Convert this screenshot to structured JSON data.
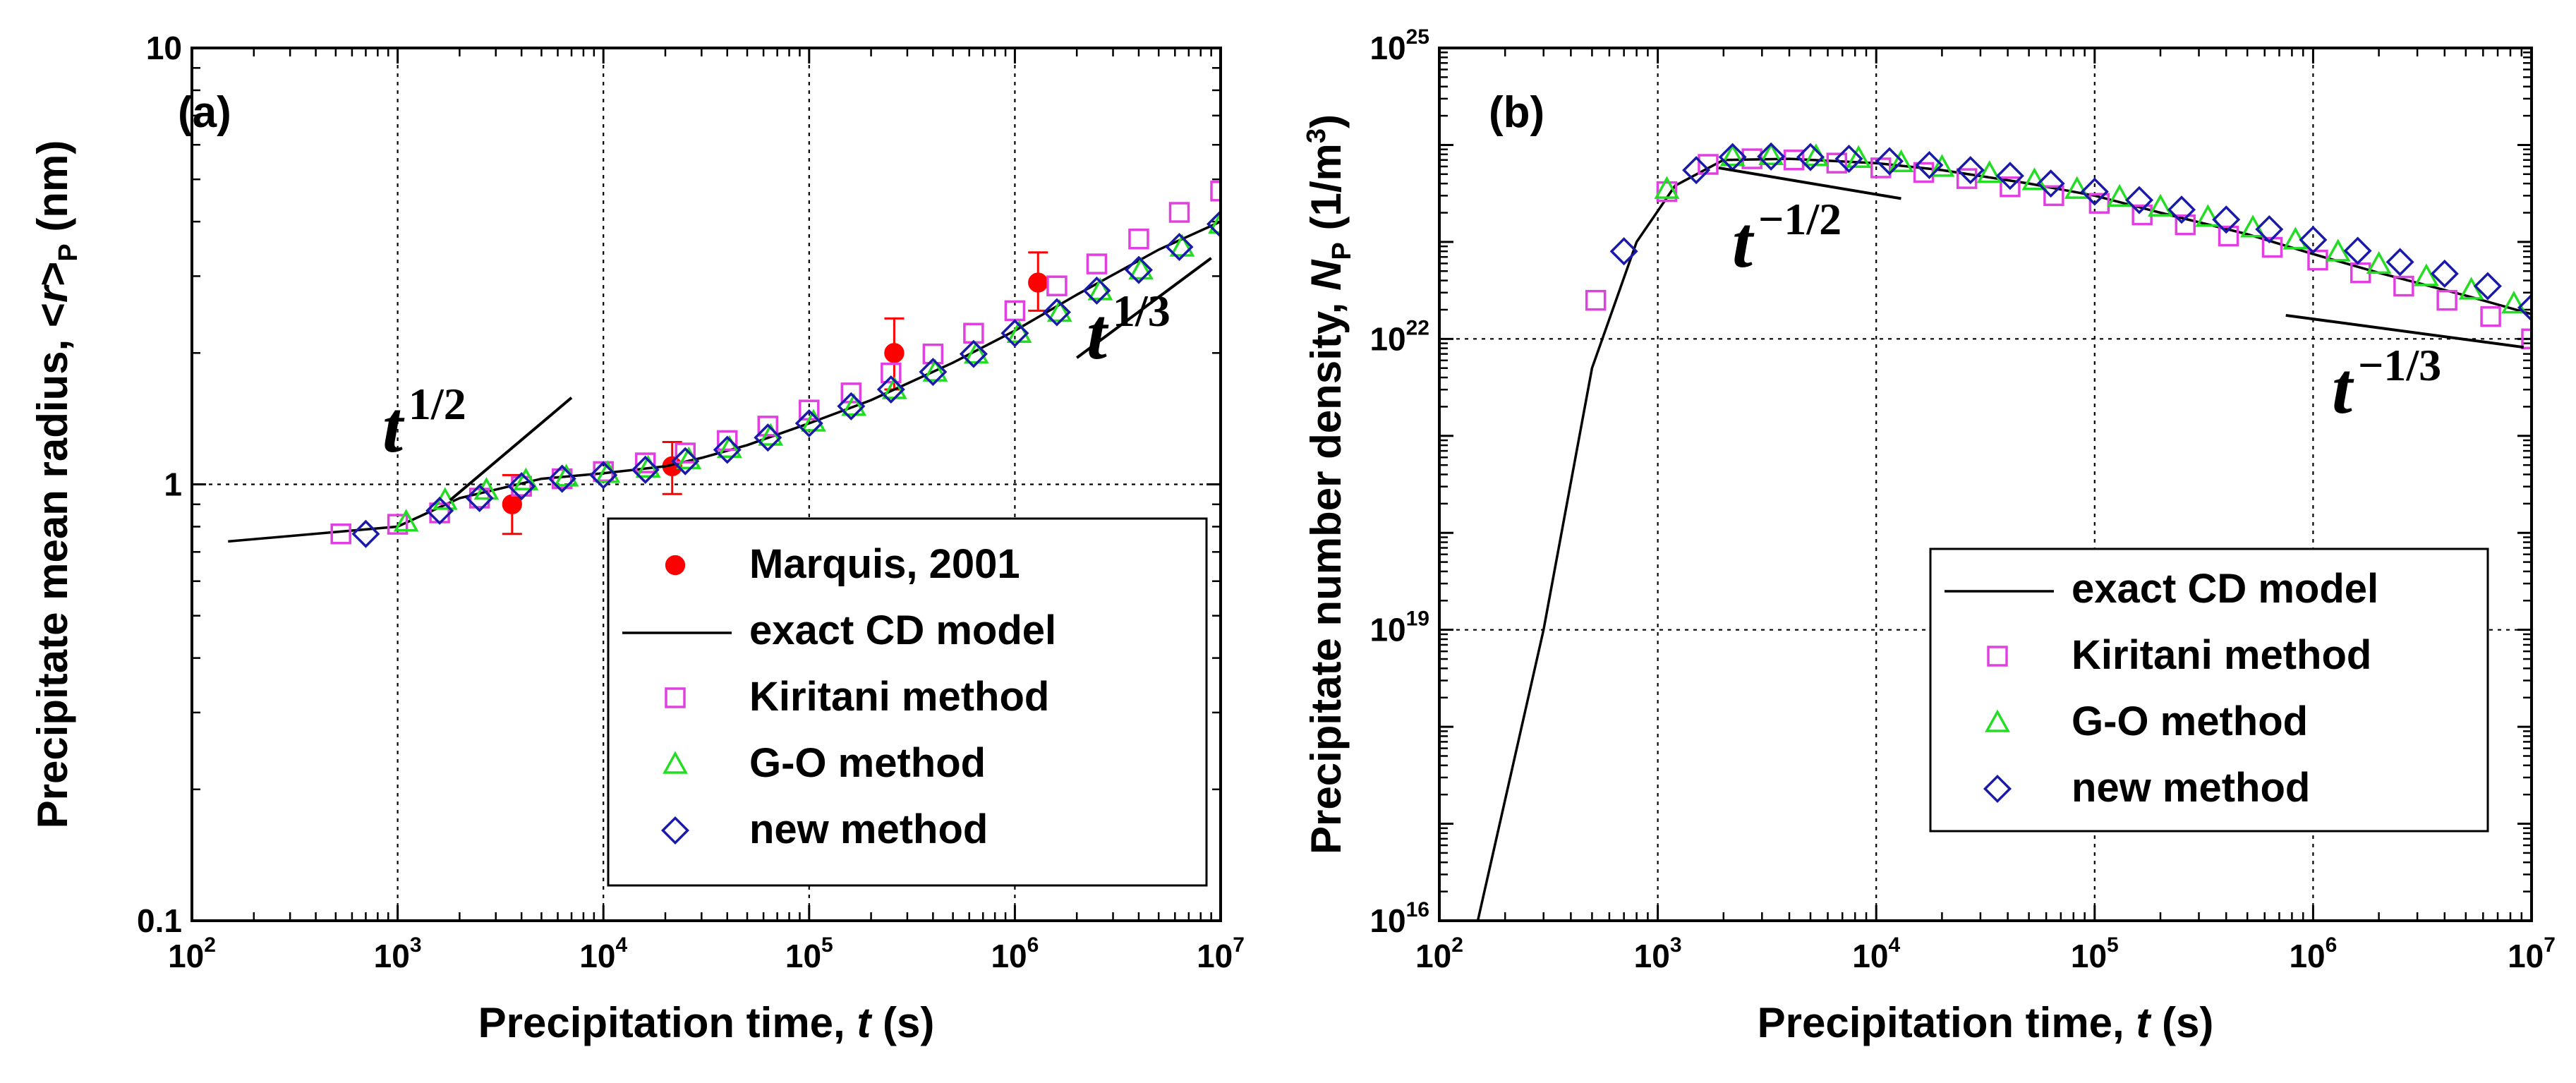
{
  "chart_data": [
    {
      "type": "scatter",
      "panel_label": "(a)",
      "xlabel_main": "Precipitation time, ",
      "xlabel_var": "t",
      "xlabel_unit": " (s)",
      "ylabel_main": "Precipitate mean radius, <",
      "ylabel_var": "r",
      "ylabel_close": ">",
      "ylabel_sub": "P",
      "ylabel_unit": " (nm)",
      "x_scale": "log",
      "y_scale": "log",
      "xlim": [
        100,
        10000000
      ],
      "ylim": [
        0.1,
        10
      ],
      "x_ticks": [
        {
          "value": 100,
          "base": "10",
          "exp": "2"
        },
        {
          "value": 1000,
          "base": "10",
          "exp": "3"
        },
        {
          "value": 10000,
          "base": "10",
          "exp": "4"
        },
        {
          "value": 100000,
          "base": "10",
          "exp": "5"
        },
        {
          "value": 1000000,
          "base": "10",
          "exp": "6"
        },
        {
          "value": 10000000,
          "base": "10",
          "exp": "7"
        }
      ],
      "y_ticks": [
        {
          "value": 0.1,
          "label": "0.1"
        },
        {
          "value": 1,
          "label": "1"
        },
        {
          "value": 10,
          "label": "10"
        }
      ],
      "grid_x": [
        1000,
        10000,
        100000,
        1000000
      ],
      "grid_y": [
        1
      ],
      "grid": true,
      "legend_position": "bottom-right",
      "series": [
        {
          "name": "Marquis, 2001",
          "marker": "filled-circle",
          "color": "#ff0000",
          "x": [
            3600,
            21600,
            259200,
            1296000
          ],
          "y": [
            0.9,
            1.1,
            2.0,
            2.9
          ],
          "y_err_low": [
            0.77,
            0.95,
            1.65,
            2.5
          ],
          "y_err_high": [
            1.05,
            1.25,
            2.4,
            3.4
          ]
        },
        {
          "name": "exact CD model",
          "marker": "line",
          "color": "#000000",
          "x": [
            150,
            1000,
            2000,
            5000,
            10000,
            20000,
            30000,
            50000,
            100000,
            200000,
            500000,
            1000000,
            2000000,
            5000000,
            10000000
          ],
          "y": [
            0.74,
            0.8,
            0.93,
            1.03,
            1.06,
            1.1,
            1.15,
            1.23,
            1.38,
            1.56,
            1.9,
            2.25,
            2.72,
            3.45,
            4.0
          ]
        },
        {
          "name": "Kiritani method",
          "marker": "open-square",
          "color": "#e040e0",
          "x": [
            530,
            1000,
            1600,
            2500,
            4000,
            6300,
            10000,
            16000,
            25000,
            40000,
            63000,
            100000,
            160000,
            250000,
            400000,
            630000,
            1000000,
            1600000,
            2500000,
            4000000,
            6300000,
            10000000
          ],
          "y": [
            0.77,
            0.81,
            0.86,
            0.93,
            0.99,
            1.03,
            1.07,
            1.12,
            1.18,
            1.26,
            1.36,
            1.48,
            1.62,
            1.8,
            1.99,
            2.22,
            2.5,
            2.85,
            3.2,
            3.65,
            4.2,
            4.7
          ]
        },
        {
          "name": "G-O method",
          "marker": "open-triangle",
          "color": "#22dd22",
          "x": [
            1100,
            1700,
            2700,
            4200,
            6600,
            10500,
            16500,
            26000,
            41000,
            65000,
            105000,
            165000,
            260000,
            410000,
            650000,
            1050000,
            1650000,
            2600000,
            4100000,
            6500000,
            10000000
          ],
          "y": [
            0.82,
            0.92,
            0.97,
            1.02,
            1.04,
            1.06,
            1.09,
            1.14,
            1.21,
            1.29,
            1.39,
            1.51,
            1.65,
            1.81,
            1.99,
            2.22,
            2.48,
            2.78,
            3.1,
            3.5,
            3.95
          ]
        },
        {
          "name": "new method",
          "marker": "open-diamond",
          "color": "#1a1aa8",
          "x": [
            700,
            1600,
            2500,
            4000,
            6300,
            10000,
            16000,
            25000,
            40000,
            63000,
            100000,
            160000,
            250000,
            400000,
            630000,
            1000000,
            1600000,
            2500000,
            4000000,
            6300000,
            10000000
          ],
          "y": [
            0.77,
            0.87,
            0.93,
            0.99,
            1.03,
            1.05,
            1.08,
            1.13,
            1.2,
            1.28,
            1.38,
            1.51,
            1.65,
            1.81,
            1.99,
            2.22,
            2.48,
            2.78,
            3.1,
            3.5,
            3.95
          ]
        }
      ],
      "slope_lines": [
        {
          "base": "t",
          "exp": "1/2",
          "x": [
            1800,
            7000
          ],
          "y": [
            0.92,
            1.58
          ]
        },
        {
          "base": "t",
          "exp": "1/3",
          "x": [
            2000000,
            9000000
          ],
          "y": [
            1.95,
            3.3
          ]
        }
      ]
    },
    {
      "type": "scatter",
      "panel_label": "(b)",
      "xlabel_main": "Precipitation time, ",
      "xlabel_var": "t",
      "xlabel_unit": " (s)",
      "ylabel_main": "Precipitate number density, ",
      "ylabel_var": "N",
      "ylabel_sub": "P",
      "ylabel_unit_open": " (1/m",
      "ylabel_unit_exp": "3",
      "ylabel_unit_close": ")",
      "x_scale": "log",
      "y_scale": "log",
      "xlim": [
        100,
        10000000
      ],
      "ylim": [
        1e+16,
        1e+25
      ],
      "x_ticks": [
        {
          "value": 100,
          "base": "10",
          "exp": "2"
        },
        {
          "value": 1000,
          "base": "10",
          "exp": "3"
        },
        {
          "value": 10000,
          "base": "10",
          "exp": "4"
        },
        {
          "value": 100000,
          "base": "10",
          "exp": "5"
        },
        {
          "value": 1000000,
          "base": "10",
          "exp": "6"
        },
        {
          "value": 10000000,
          "base": "10",
          "exp": "7"
        }
      ],
      "y_ticks": [
        {
          "value": 1e+16,
          "base": "10",
          "exp": "16"
        },
        {
          "value": 1e+19,
          "base": "10",
          "exp": "19"
        },
        {
          "value": 1e+22,
          "base": "10",
          "exp": "22"
        },
        {
          "value": 1e+25,
          "base": "10",
          "exp": "25"
        }
      ],
      "grid_x": [
        1000,
        10000,
        100000,
        1000000
      ],
      "grid_y": [
        1e+19,
        1e+22
      ],
      "grid": true,
      "legend_position": "bottom-right",
      "series": [
        {
          "name": "exact CD model",
          "marker": "line",
          "color": "#000000",
          "x": [
            150,
            300,
            500,
            800,
            1200,
            2000,
            4000,
            10000,
            20000,
            50000,
            100000,
            200000,
            500000,
            1000000,
            2000000,
            5000000,
            10000000
          ],
          "y": [
            1e+16,
            1e+19,
            5e+21,
            1e+23,
            3.8e+23,
            7e+23,
            7.2e+23,
            6.5e+23,
            5.5e+23,
            4e+23,
            3e+23,
            2e+23,
            1.2e+23,
            7.5e+22,
            4.8e+22,
            2.8e+22,
            1.8e+22
          ]
        },
        {
          "name": "Kiritani method",
          "marker": "open-square",
          "color": "#e040e0",
          "x": [
            520,
            1100,
            1700,
            2700,
            4200,
            6600,
            10500,
            16500,
            26000,
            41000,
            65000,
            105000,
            165000,
            260000,
            410000,
            650000,
            1050000,
            1650000,
            2600000,
            4100000,
            6500000,
            10000000
          ],
          "y": [
            2.5e+22,
            3.3e+23,
            6.3e+23,
            7.2e+23,
            7e+23,
            6.5e+23,
            5.8e+23,
            5.2e+23,
            4.5e+23,
            3.7e+23,
            3e+23,
            2.5e+23,
            1.9e+23,
            1.5e+23,
            1.15e+23,
            8.8e+22,
            6.5e+22,
            4.8e+22,
            3.5e+22,
            2.5e+22,
            1.7e+22,
            1e+22
          ]
        },
        {
          "name": "G-O method",
          "marker": "open-triangle",
          "color": "#22dd22",
          "x": [
            1100,
            2200,
            3300,
            5300,
            8300,
            13000,
            20000,
            33000,
            53000,
            83000,
            130000,
            200000,
            330000,
            530000,
            830000,
            1300000,
            2000000,
            3300000,
            5300000,
            8300000
          ],
          "y": [
            3.5e+23,
            7.6e+23,
            7.8e+23,
            7.6e+23,
            7.3e+23,
            6.6e+23,
            5.9e+23,
            5.1e+23,
            4.3e+23,
            3.5e+23,
            2.9e+23,
            2.3e+23,
            1.8e+23,
            1.4e+23,
            1.05e+23,
            7.9e+22,
            5.9e+22,
            4.4e+22,
            3.2e+22,
            2.3e+22
          ]
        },
        {
          "name": "new method",
          "marker": "open-diamond",
          "color": "#1a1aa8",
          "x": [
            700,
            1500,
            2200,
            3300,
            5000,
            7500,
            11500,
            17500,
            27000,
            41000,
            63000,
            100000,
            160000,
            250000,
            400000,
            630000,
            1000000,
            1600000,
            2500000,
            4000000,
            6300000,
            10000000
          ],
          "y": [
            8e+22,
            5.5e+23,
            7.5e+23,
            7.6e+23,
            7.5e+23,
            7.2e+23,
            6.8e+23,
            6.2e+23,
            5.5e+23,
            4.8e+23,
            4e+23,
            3.3e+23,
            2.7e+23,
            2.15e+23,
            1.7e+23,
            1.35e+23,
            1.05e+23,
            8.1e+22,
            6.2e+22,
            4.7e+22,
            3.5e+22,
            2.1e+22
          ]
        }
      ],
      "slope_lines": [
        {
          "base": "t",
          "exp": "−1/2",
          "x": [
            1900,
            13000
          ],
          "y": [
            5.8e+23,
            2.8e+23
          ]
        },
        {
          "base": "t",
          "exp": "−1/3",
          "x": [
            750000,
            9200000
          ],
          "y": [
            1.75e+22,
            8.2e+21
          ]
        }
      ]
    }
  ]
}
